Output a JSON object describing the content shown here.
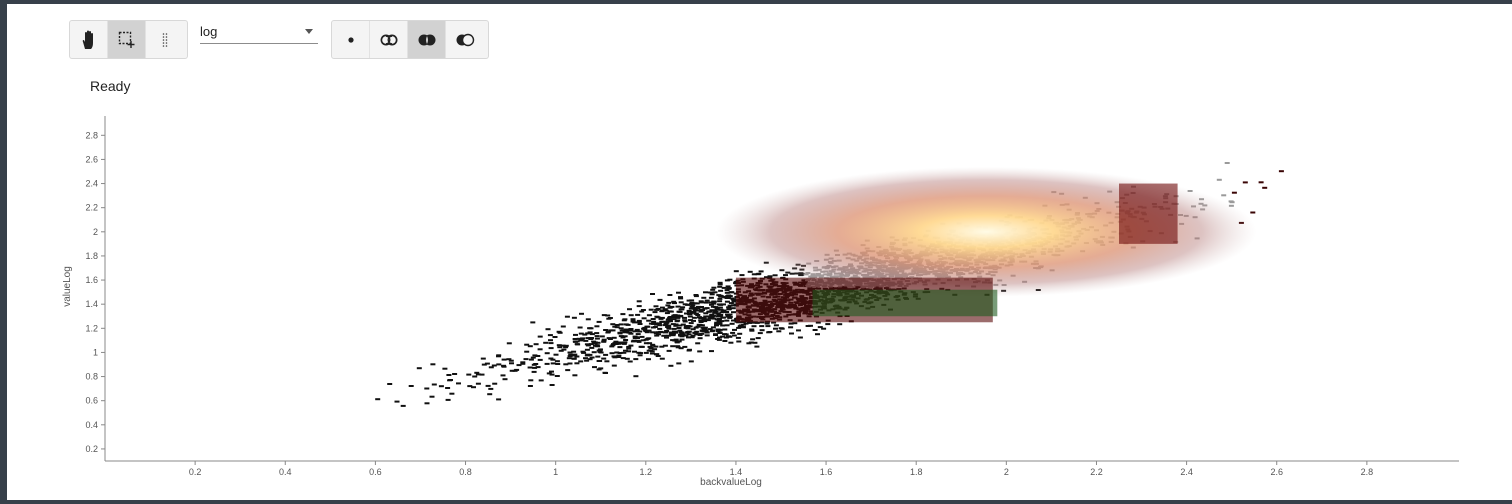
{
  "toolbar": {
    "tools": [
      {
        "name": "pan",
        "icon": "hand-icon",
        "active": false
      },
      {
        "name": "box-select",
        "icon": "box-select-icon",
        "active": true
      },
      {
        "name": "lasso",
        "icon": "dotted-line-icon",
        "active": false
      }
    ],
    "scale_select": {
      "value": "log"
    },
    "modes": [
      {
        "name": "single",
        "icon": "dot-icon",
        "active": false
      },
      {
        "name": "union",
        "icon": "union-icon",
        "active": false
      },
      {
        "name": "intersection",
        "icon": "intersection-icon",
        "active": true
      },
      {
        "name": "difference",
        "icon": "difference-icon",
        "active": false
      }
    ]
  },
  "status": {
    "text": "Ready"
  },
  "chart_data": {
    "type": "heatmap",
    "xlabel": "backvalueLog",
    "ylabel": "valueLog",
    "xlim": [
      0,
      3
    ],
    "ylim": [
      0.1,
      2.96
    ],
    "xticks": [
      "0.2",
      "0.4",
      "0.6",
      "0.8",
      "1",
      "1.2",
      "1.4",
      "1.6",
      "1.8",
      "2",
      "2.2",
      "2.4",
      "2.6",
      "2.8"
    ],
    "yticks": [
      "0.2",
      "0.4",
      "0.6",
      "0.8",
      "1",
      "1.2",
      "1.4",
      "1.6",
      "1.8",
      "2",
      "2.2",
      "2.4",
      "2.6",
      "2.8"
    ],
    "density_peak": {
      "x": 2.0,
      "y": 2.0
    },
    "selections": [
      {
        "x0": 1.4,
        "x1": 1.97,
        "y0": 1.25,
        "y1": 1.62,
        "color": "#5a0a0a"
      },
      {
        "x0": 1.57,
        "x1": 1.98,
        "y0": 1.3,
        "y1": 1.52,
        "color": "#1e5a1e"
      },
      {
        "x0": 2.25,
        "x1": 2.38,
        "y0": 1.9,
        "y1": 2.4,
        "color": "#6e0a0a"
      }
    ],
    "colors": {
      "high": "#fff3c4",
      "mid": "#e8a070",
      "low": "#7a1a1a",
      "selection": "#1e5a1e"
    }
  }
}
